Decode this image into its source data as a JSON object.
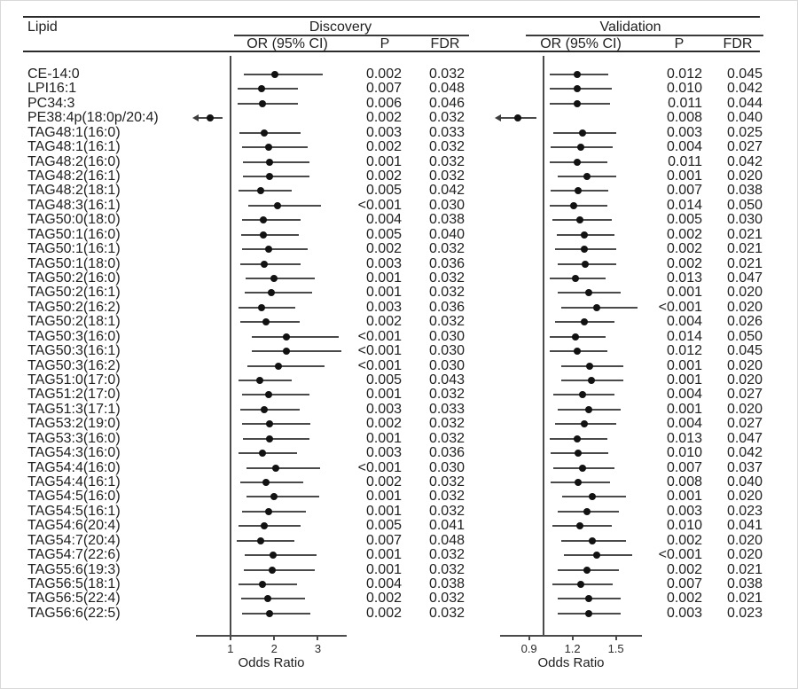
{
  "header": {
    "lipid": "Lipid",
    "discovery": "Discovery",
    "validation": "Validation",
    "or_ci": "OR (95% CI)",
    "p": "P",
    "fdr": "FDR"
  },
  "colors": {
    "text": "#1f1f1f",
    "ci_line": "#4a4a4a",
    "dot": "#121212",
    "rule": "#2a2a2a"
  },
  "chart_data": {
    "type": "forest",
    "title": "",
    "axes": {
      "discovery": {
        "xlabel": "Odds Ratio",
        "xlim": [
          0.21,
          3.66
        ],
        "refline": 1,
        "ticks": [
          {
            "v": 1,
            "label": "1"
          },
          {
            "v": 2,
            "label": "2"
          },
          {
            "v": 3,
            "label": "3"
          }
        ]
      },
      "validation": {
        "xlabel": "Odds Ratio",
        "xlim": [
          0.7,
          1.68
        ],
        "refline": 1,
        "ticks": [
          {
            "v": 0.9,
            "label": "0.9"
          },
          {
            "v": 1.2,
            "label": "1.2"
          },
          {
            "v": 1.5,
            "label": "1.5"
          }
        ]
      }
    },
    "rows": [
      {
        "lipid": "CE-14:0",
        "discovery": {
          "or": 2.02,
          "lo": 1.31,
          "hi": 3.12,
          "p": "0.002",
          "fdr": "0.032"
        },
        "validation": {
          "or": 1.23,
          "lo": 1.04,
          "hi": 1.45,
          "p": "0.012",
          "fdr": "0.045"
        }
      },
      {
        "lipid": "LPI16:1",
        "discovery": {
          "or": 1.71,
          "lo": 1.16,
          "hi": 2.55,
          "p": "0.007",
          "fdr": "0.048"
        },
        "validation": {
          "or": 1.23,
          "lo": 1.04,
          "hi": 1.47,
          "p": "0.010",
          "fdr": "0.042"
        }
      },
      {
        "lipid": "PC34:3",
        "discovery": {
          "or": 1.73,
          "lo": 1.17,
          "hi": 2.55,
          "p": "0.006",
          "fdr": "0.046"
        },
        "validation": {
          "or": 1.23,
          "lo": 1.04,
          "hi": 1.46,
          "p": "0.011",
          "fdr": "0.044"
        }
      },
      {
        "lipid": "PE38:4p(18:0p/20:4)",
        "discovery": {
          "or": 0.53,
          "lo": 0.25,
          "hi": 0.82,
          "p": "0.002",
          "fdr": "0.032",
          "arrow_lo": true
        },
        "validation": {
          "or": 0.82,
          "lo": 0.7,
          "hi": 0.95,
          "p": "0.008",
          "fdr": "0.040",
          "arrow_lo": true
        }
      },
      {
        "lipid": "TAG48:1(16:0)",
        "discovery": {
          "or": 1.78,
          "lo": 1.2,
          "hi": 2.6,
          "p": "0.003",
          "fdr": "0.033"
        },
        "validation": {
          "or": 1.27,
          "lo": 1.07,
          "hi": 1.5,
          "p": "0.003",
          "fdr": "0.025"
        }
      },
      {
        "lipid": "TAG48:1(16:1)",
        "discovery": {
          "or": 1.87,
          "lo": 1.26,
          "hi": 2.76,
          "p": "0.002",
          "fdr": "0.032"
        },
        "validation": {
          "or": 1.26,
          "lo": 1.05,
          "hi": 1.48,
          "p": "0.004",
          "fdr": "0.027"
        }
      },
      {
        "lipid": "TAG48:2(16:0)",
        "discovery": {
          "or": 1.9,
          "lo": 1.28,
          "hi": 2.8,
          "p": "0.001",
          "fdr": "0.032"
        },
        "validation": {
          "or": 1.23,
          "lo": 1.04,
          "hi": 1.44,
          "p": "0.011",
          "fdr": "0.042"
        }
      },
      {
        "lipid": "TAG48:2(16:1)",
        "discovery": {
          "or": 1.9,
          "lo": 1.28,
          "hi": 2.8,
          "p": "0.002",
          "fdr": "0.032"
        },
        "validation": {
          "or": 1.3,
          "lo": 1.1,
          "hi": 1.5,
          "p": "0.001",
          "fdr": "0.020"
        }
      },
      {
        "lipid": "TAG48:2(18:1)",
        "discovery": {
          "or": 1.69,
          "lo": 1.18,
          "hi": 2.41,
          "p": "0.005",
          "fdr": "0.042"
        },
        "validation": {
          "or": 1.24,
          "lo": 1.05,
          "hi": 1.45,
          "p": "0.007",
          "fdr": "0.038"
        }
      },
      {
        "lipid": "TAG48:3(16:1)",
        "discovery": {
          "or": 2.08,
          "lo": 1.41,
          "hi": 3.08,
          "p": "<0.001",
          "fdr": "0.030"
        },
        "validation": {
          "or": 1.21,
          "lo": 1.04,
          "hi": 1.44,
          "p": "0.014",
          "fdr": "0.050"
        }
      },
      {
        "lipid": "TAG50:0(18:0)",
        "discovery": {
          "or": 1.76,
          "lo": 1.26,
          "hi": 2.61,
          "p": "0.004",
          "fdr": "0.038"
        },
        "validation": {
          "or": 1.25,
          "lo": 1.06,
          "hi": 1.47,
          "p": "0.005",
          "fdr": "0.030"
        }
      },
      {
        "lipid": "TAG50:1(16:0)",
        "discovery": {
          "or": 1.76,
          "lo": 1.24,
          "hi": 2.56,
          "p": "0.005",
          "fdr": "0.040"
        },
        "validation": {
          "or": 1.28,
          "lo": 1.09,
          "hi": 1.49,
          "p": "0.002",
          "fdr": "0.021"
        }
      },
      {
        "lipid": "TAG50:1(16:1)",
        "discovery": {
          "or": 1.87,
          "lo": 1.27,
          "hi": 2.77,
          "p": "0.002",
          "fdr": "0.032"
        },
        "validation": {
          "or": 1.28,
          "lo": 1.08,
          "hi": 1.5,
          "p": "0.002",
          "fdr": "0.021"
        }
      },
      {
        "lipid": "TAG50:1(18:0)",
        "discovery": {
          "or": 1.78,
          "lo": 1.22,
          "hi": 2.6,
          "p": "0.003",
          "fdr": "0.036"
        },
        "validation": {
          "or": 1.29,
          "lo": 1.1,
          "hi": 1.5,
          "p": "0.002",
          "fdr": "0.021"
        }
      },
      {
        "lipid": "TAG50:2(16:0)",
        "discovery": {
          "or": 2.0,
          "lo": 1.35,
          "hi": 2.92,
          "p": "0.001",
          "fdr": "0.032"
        },
        "validation": {
          "or": 1.22,
          "lo": 1.04,
          "hi": 1.43,
          "p": "0.013",
          "fdr": "0.047"
        }
      },
      {
        "lipid": "TAG50:2(16:1)",
        "discovery": {
          "or": 1.94,
          "lo": 1.33,
          "hi": 2.86,
          "p": "0.001",
          "fdr": "0.032"
        },
        "validation": {
          "or": 1.31,
          "lo": 1.1,
          "hi": 1.53,
          "p": "0.001",
          "fdr": "0.020"
        }
      },
      {
        "lipid": "TAG50:2(16:2)",
        "discovery": {
          "or": 1.71,
          "lo": 1.18,
          "hi": 2.49,
          "p": "0.003",
          "fdr": "0.036"
        },
        "validation": {
          "or": 1.37,
          "lo": 1.12,
          "hi": 1.65,
          "p": "<0.001",
          "fdr": "0.020"
        }
      },
      {
        "lipid": "TAG50:2(18:1)",
        "discovery": {
          "or": 1.82,
          "lo": 1.22,
          "hi": 2.59,
          "p": "0.002",
          "fdr": "0.032"
        },
        "validation": {
          "or": 1.28,
          "lo": 1.08,
          "hi": 1.49,
          "p": "0.004",
          "fdr": "0.026"
        }
      },
      {
        "lipid": "TAG50:3(16:0)",
        "discovery": {
          "or": 2.27,
          "lo": 1.49,
          "hi": 3.47,
          "p": "<0.001",
          "fdr": "0.030"
        },
        "validation": {
          "or": 1.22,
          "lo": 1.04,
          "hi": 1.43,
          "p": "0.014",
          "fdr": "0.050"
        }
      },
      {
        "lipid": "TAG50:3(16:1)",
        "discovery": {
          "or": 2.29,
          "lo": 1.49,
          "hi": 3.53,
          "p": "<0.001",
          "fdr": "0.030"
        },
        "validation": {
          "or": 1.23,
          "lo": 1.04,
          "hi": 1.44,
          "p": "0.012",
          "fdr": "0.045"
        }
      },
      {
        "lipid": "TAG50:3(16:2)",
        "discovery": {
          "or": 2.1,
          "lo": 1.39,
          "hi": 3.16,
          "p": "<0.001",
          "fdr": "0.030"
        },
        "validation": {
          "or": 1.32,
          "lo": 1.12,
          "hi": 1.55,
          "p": "0.001",
          "fdr": "0.020"
        }
      },
      {
        "lipid": "TAG51:0(17:0)",
        "discovery": {
          "or": 1.67,
          "lo": 1.18,
          "hi": 2.41,
          "p": "0.005",
          "fdr": "0.043"
        },
        "validation": {
          "or": 1.33,
          "lo": 1.12,
          "hi": 1.55,
          "p": "0.001",
          "fdr": "0.020"
        }
      },
      {
        "lipid": "TAG51:2(17:0)",
        "discovery": {
          "or": 1.88,
          "lo": 1.27,
          "hi": 2.8,
          "p": "0.001",
          "fdr": "0.032"
        },
        "validation": {
          "or": 1.27,
          "lo": 1.07,
          "hi": 1.49,
          "p": "0.004",
          "fdr": "0.027"
        }
      },
      {
        "lipid": "TAG51:3(17:1)",
        "discovery": {
          "or": 1.78,
          "lo": 1.22,
          "hi": 2.59,
          "p": "0.003",
          "fdr": "0.033"
        },
        "validation": {
          "or": 1.31,
          "lo": 1.1,
          "hi": 1.53,
          "p": "0.001",
          "fdr": "0.020"
        }
      },
      {
        "lipid": "TAG53:2(19:0)",
        "discovery": {
          "or": 1.9,
          "lo": 1.27,
          "hi": 2.82,
          "p": "0.002",
          "fdr": "0.032"
        },
        "validation": {
          "or": 1.28,
          "lo": 1.08,
          "hi": 1.5,
          "p": "0.004",
          "fdr": "0.027"
        }
      },
      {
        "lipid": "TAG53:3(16:0)",
        "discovery": {
          "or": 1.9,
          "lo": 1.28,
          "hi": 2.8,
          "p": "0.001",
          "fdr": "0.032"
        },
        "validation": {
          "or": 1.23,
          "lo": 1.04,
          "hi": 1.44,
          "p": "0.013",
          "fdr": "0.047"
        }
      },
      {
        "lipid": "TAG54:3(16:0)",
        "discovery": {
          "or": 1.73,
          "lo": 1.18,
          "hi": 2.53,
          "p": "0.003",
          "fdr": "0.036"
        },
        "validation": {
          "or": 1.24,
          "lo": 1.05,
          "hi": 1.45,
          "p": "0.010",
          "fdr": "0.042"
        }
      },
      {
        "lipid": "TAG54:4(16:0)",
        "discovery": {
          "or": 2.04,
          "lo": 1.37,
          "hi": 3.06,
          "p": "<0.001",
          "fdr": "0.030"
        },
        "validation": {
          "or": 1.27,
          "lo": 1.07,
          "hi": 1.49,
          "p": "0.007",
          "fdr": "0.037"
        }
      },
      {
        "lipid": "TAG54:4(16:1)",
        "discovery": {
          "or": 1.82,
          "lo": 1.22,
          "hi": 2.67,
          "p": "0.002",
          "fdr": "0.032"
        },
        "validation": {
          "or": 1.24,
          "lo": 1.05,
          "hi": 1.46,
          "p": "0.008",
          "fdr": "0.040"
        }
      },
      {
        "lipid": "TAG54:5(16:0)",
        "discovery": {
          "or": 2.0,
          "lo": 1.37,
          "hi": 3.04,
          "p": "0.001",
          "fdr": "0.032"
        },
        "validation": {
          "or": 1.34,
          "lo": 1.13,
          "hi": 1.57,
          "p": "0.001",
          "fdr": "0.020"
        }
      },
      {
        "lipid": "TAG54:5(16:1)",
        "discovery": {
          "or": 1.88,
          "lo": 1.27,
          "hi": 2.73,
          "p": "0.001",
          "fdr": "0.032"
        },
        "validation": {
          "or": 1.3,
          "lo": 1.1,
          "hi": 1.52,
          "p": "0.003",
          "fdr": "0.023"
        }
      },
      {
        "lipid": "TAG54:6(20:4)",
        "discovery": {
          "or": 1.78,
          "lo": 1.18,
          "hi": 2.61,
          "p": "0.005",
          "fdr": "0.041"
        },
        "validation": {
          "or": 1.25,
          "lo": 1.06,
          "hi": 1.47,
          "p": "0.010",
          "fdr": "0.041"
        }
      },
      {
        "lipid": "TAG54:7(20:4)",
        "discovery": {
          "or": 1.69,
          "lo": 1.14,
          "hi": 2.47,
          "p": "0.007",
          "fdr": "0.048"
        },
        "validation": {
          "or": 1.34,
          "lo": 1.12,
          "hi": 1.57,
          "p": "0.002",
          "fdr": "0.020"
        }
      },
      {
        "lipid": "TAG54:7(22:6)",
        "discovery": {
          "or": 1.98,
          "lo": 1.33,
          "hi": 2.96,
          "p": "0.001",
          "fdr": "0.032"
        },
        "validation": {
          "or": 1.37,
          "lo": 1.14,
          "hi": 1.61,
          "p": "<0.001",
          "fdr": "0.020"
        }
      },
      {
        "lipid": "TAG55:6(19:3)",
        "discovery": {
          "or": 1.96,
          "lo": 1.31,
          "hi": 2.92,
          "p": "0.001",
          "fdr": "0.032"
        },
        "validation": {
          "or": 1.3,
          "lo": 1.1,
          "hi": 1.52,
          "p": "0.002",
          "fdr": "0.021"
        }
      },
      {
        "lipid": "TAG56:5(18:1)",
        "discovery": {
          "or": 1.73,
          "lo": 1.18,
          "hi": 2.53,
          "p": "0.004",
          "fdr": "0.038"
        },
        "validation": {
          "or": 1.26,
          "lo": 1.06,
          "hi": 1.48,
          "p": "0.007",
          "fdr": "0.038"
        }
      },
      {
        "lipid": "TAG56:5(22:4)",
        "discovery": {
          "or": 1.86,
          "lo": 1.24,
          "hi": 2.71,
          "p": "0.002",
          "fdr": "0.032"
        },
        "validation": {
          "or": 1.31,
          "lo": 1.1,
          "hi": 1.53,
          "p": "0.002",
          "fdr": "0.021"
        }
      },
      {
        "lipid": "TAG56:6(22:5)",
        "discovery": {
          "or": 1.9,
          "lo": 1.27,
          "hi": 2.82,
          "p": "0.002",
          "fdr": "0.032"
        },
        "validation": {
          "or": 1.31,
          "lo": 1.1,
          "hi": 1.53,
          "p": "0.003",
          "fdr": "0.023"
        }
      }
    ]
  }
}
